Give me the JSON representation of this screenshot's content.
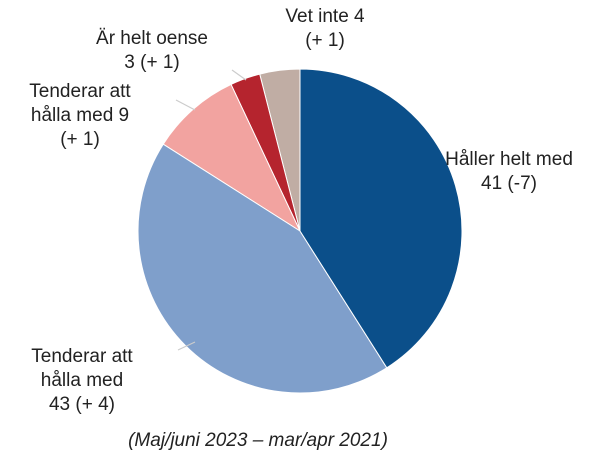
{
  "chart_data": {
    "type": "pie",
    "subtitle": "(Maj/juni 2023 – mar/apr 2021)",
    "categories": [
      "Håller helt med",
      "Tenderar att hålla med",
      "Tenderar att hålla med",
      "Är helt oense",
      "Vet inte"
    ],
    "values": [
      41,
      43,
      9,
      3,
      4
    ],
    "changes": [
      "(-7)",
      "(+ 4)",
      "(+ 1)",
      "(+ 1)",
      "(+ 1)"
    ],
    "colors": [
      "#0b4f8a",
      "#7f9fcb",
      "#f2a3a0",
      "#b5242e",
      "#c0ada4"
    ]
  }
}
